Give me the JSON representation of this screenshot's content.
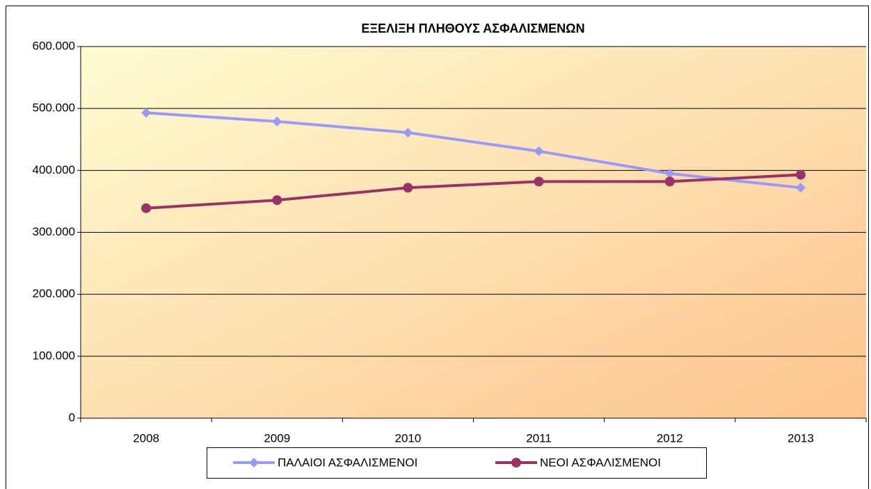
{
  "chart_data": {
    "type": "line",
    "title": "ΕΞΕΛΙΞΗ ΠΛΗΘΟΥΣ ΑΣΦΑΛΙΣΜΕΝΩΝ",
    "categories": [
      "2008",
      "2009",
      "2010",
      "2011",
      "2012",
      "2013"
    ],
    "series": [
      {
        "name": "ΠΑΛΑΙΟΙ ΑΣΦΑΛΙΣΜΕΝΟΙ",
        "color": "#9999ff",
        "marker": "diamond",
        "values": [
          493000,
          479000,
          461000,
          431000,
          395000,
          372000
        ]
      },
      {
        "name": "ΝΕΟΙ ΑΣΦΑΛΙΣΜΕΝΟΙ",
        "color": "#993366",
        "marker": "circle",
        "values": [
          339000,
          352000,
          372000,
          382000,
          382000,
          393000
        ]
      }
    ],
    "ylim": [
      0,
      600000
    ],
    "yticks": [
      0,
      {
        "value": 100000,
        "label": "100.000"
      },
      {
        "value": 200000,
        "label": "200.000"
      },
      {
        "value": 300000,
        "label": "300.000"
      },
      {
        "value": 400000,
        "label": "400.000"
      },
      {
        "value": 500000,
        "label": "500.000"
      },
      {
        "value": 600000,
        "label": "600.000"
      }
    ],
    "grid": true,
    "legend": "bottom"
  }
}
